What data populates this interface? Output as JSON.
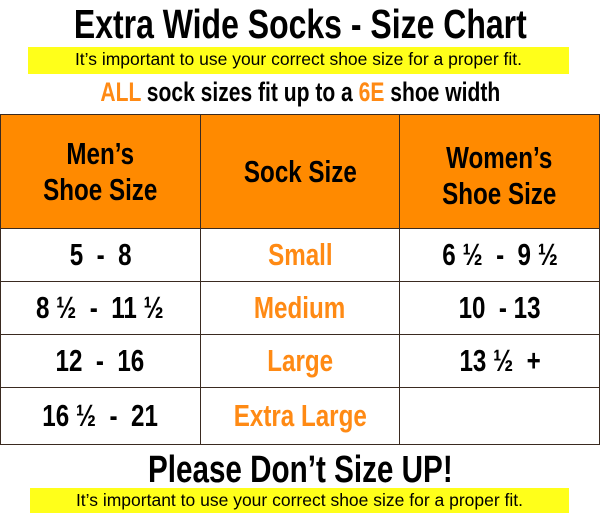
{
  "title": "Extra Wide Socks - Size Chart",
  "notice": "It’s important to use your correct shoe size for a proper fit.",
  "subtitle": {
    "all": "ALL",
    "mid": " sock sizes fit up to a ",
    "width": "6E",
    "end": " shoe width"
  },
  "colors": {
    "accent": "#ff8a00",
    "highlight": "#ffff1a"
  },
  "table": {
    "headers": [
      [
        "Men’s",
        "Shoe Size"
      ],
      [
        "Sock Size"
      ],
      [
        "Women’s",
        "Shoe Size"
      ]
    ],
    "rows": [
      [
        "5  -  8",
        "Small",
        "6 ½  -  9 ½"
      ],
      [
        "8 ½  -  11 ½",
        "Medium",
        "10  - 13"
      ],
      [
        "12  -  16",
        "Large",
        "13 ½  +"
      ],
      [
        "16 ½  -  21",
        "Extra Large",
        ""
      ]
    ]
  },
  "footer": {
    "title": "Please Don’t Size UP!",
    "notice": "It’s important to use your correct shoe size for a proper fit."
  }
}
